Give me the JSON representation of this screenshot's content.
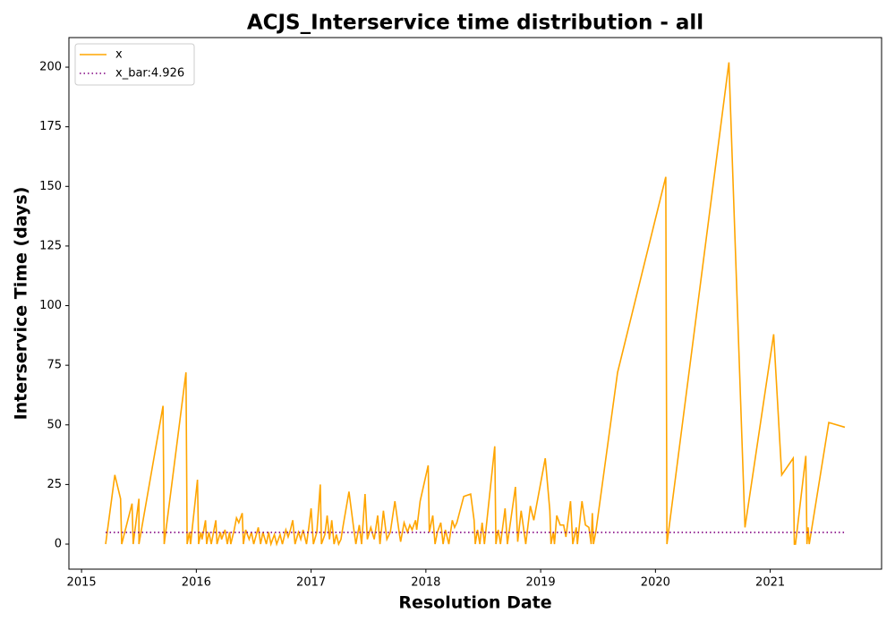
{
  "chart_data": {
    "type": "line",
    "title": "ACJS_Interservice time distribution - all",
    "xlabel": "Resolution Date",
    "ylabel": "Interservice Time (days)",
    "xlim": [
      2014.89,
      2021.97
    ],
    "xticks": [
      2015,
      2016,
      2017,
      2018,
      2019,
      2020,
      2021
    ],
    "ylim": [
      -10.5,
      212.4
    ],
    "yticks": [
      0,
      25,
      50,
      75,
      100,
      125,
      150,
      175,
      200
    ],
    "grid": false,
    "legend": "upper left",
    "series": [
      {
        "name": "x",
        "color": "#ffa500",
        "style": "solid",
        "x": [
          2015.21,
          2015.29,
          2015.34,
          2015.35,
          2015.44,
          2015.45,
          2015.5,
          2015.5,
          2015.71,
          2015.72,
          2015.91,
          2015.92,
          2015.94,
          2015.95,
          2016.01,
          2016.02,
          2016.04,
          2016.05,
          2016.08,
          2016.09,
          2016.11,
          2016.13,
          2016.17,
          2016.18,
          2016.21,
          2016.22,
          2016.25,
          2016.27,
          2016.29,
          2016.3,
          2016.33,
          2016.35,
          2016.37,
          2016.4,
          2016.41,
          2016.43,
          2016.46,
          2016.48,
          2016.5,
          2016.54,
          2016.56,
          2016.58,
          2016.61,
          2016.63,
          2016.65,
          2016.68,
          2016.7,
          2016.73,
          2016.75,
          2016.78,
          2016.8,
          2016.82,
          2016.84,
          2016.86,
          2016.89,
          2016.91,
          2016.93,
          2016.96,
          2016.98,
          2017.0,
          2017.02,
          2017.05,
          2017.08,
          2017.09,
          2017.12,
          2017.14,
          2017.16,
          2017.18,
          2017.2,
          2017.22,
          2017.24,
          2017.26,
          2017.28,
          2017.33,
          2017.37,
          2017.39,
          2017.42,
          2017.44,
          2017.47,
          2017.49,
          2017.52,
          2017.55,
          2017.58,
          2017.6,
          2017.63,
          2017.66,
          2017.69,
          2017.73,
          2017.77,
          2017.78,
          2017.81,
          2017.84,
          2017.86,
          2017.88,
          2017.91,
          2017.92,
          2017.95,
          2018.02,
          2018.03,
          2018.06,
          2018.08,
          2018.1,
          2018.13,
          2018.15,
          2018.17,
          2018.2,
          2018.23,
          2018.25,
          2018.27,
          2018.33,
          2018.39,
          2018.42,
          2018.43,
          2018.45,
          2018.47,
          2018.49,
          2018.51,
          2018.6,
          2018.61,
          2018.63,
          2018.65,
          2018.69,
          2018.71,
          2018.78,
          2018.8,
          2018.83,
          2018.87,
          2018.91,
          2018.94,
          2019.04,
          2019.08,
          2019.09,
          2019.11,
          2019.12,
          2019.14,
          2019.17,
          2019.2,
          2019.22,
          2019.26,
          2019.28,
          2019.31,
          2019.32,
          2019.36,
          2019.39,
          2019.42,
          2019.44,
          2019.45,
          2019.46,
          2019.48,
          2019.67,
          2020.09,
          2020.1,
          2020.64,
          2020.78,
          2021.03,
          2021.1,
          2021.2,
          2021.21,
          2021.22,
          2021.31,
          2021.32,
          2021.33,
          2021.34,
          2021.51,
          2021.65
        ],
        "values": [
          0,
          29,
          19,
          0,
          17,
          0,
          19,
          0,
          58,
          0,
          72,
          0,
          5,
          0,
          27,
          0,
          5,
          2,
          10,
          0,
          5,
          0,
          10,
          0,
          5,
          2,
          6,
          0,
          5,
          0,
          6,
          11,
          9,
          13,
          0,
          6,
          2,
          5,
          0,
          7,
          0,
          5,
          0,
          5,
          0,
          4,
          0,
          4,
          0,
          6,
          3,
          6,
          10,
          0,
          5,
          2,
          6,
          0,
          7,
          15,
          0,
          5,
          25,
          0,
          4,
          12,
          2,
          10,
          0,
          4,
          0,
          2,
          8,
          22,
          7,
          0,
          8,
          0,
          21,
          2,
          7,
          2,
          12,
          0,
          14,
          2,
          5,
          18,
          4,
          1,
          9,
          5,
          8,
          6,
          10,
          6,
          18,
          33,
          5,
          12,
          0,
          5,
          9,
          0,
          6,
          0,
          10,
          7,
          9,
          20,
          21,
          10,
          0,
          6,
          0,
          9,
          0,
          41,
          0,
          6,
          0,
          15,
          0,
          24,
          1,
          14,
          0,
          16,
          10,
          36,
          14,
          0,
          5,
          0,
          12,
          8,
          8,
          3,
          18,
          0,
          7,
          0,
          18,
          8,
          7,
          0,
          13,
          0,
          5,
          72,
          154,
          0,
          202,
          7,
          88,
          29,
          36,
          0,
          0,
          37,
          0,
          7,
          0,
          51,
          49
        ]
      },
      {
        "name": "x_bar:4.926",
        "color": "#800080",
        "style": "dotted",
        "x": [
          2015.21,
          2021.65
        ],
        "values": [
          4.926,
          4.926
        ]
      }
    ]
  }
}
